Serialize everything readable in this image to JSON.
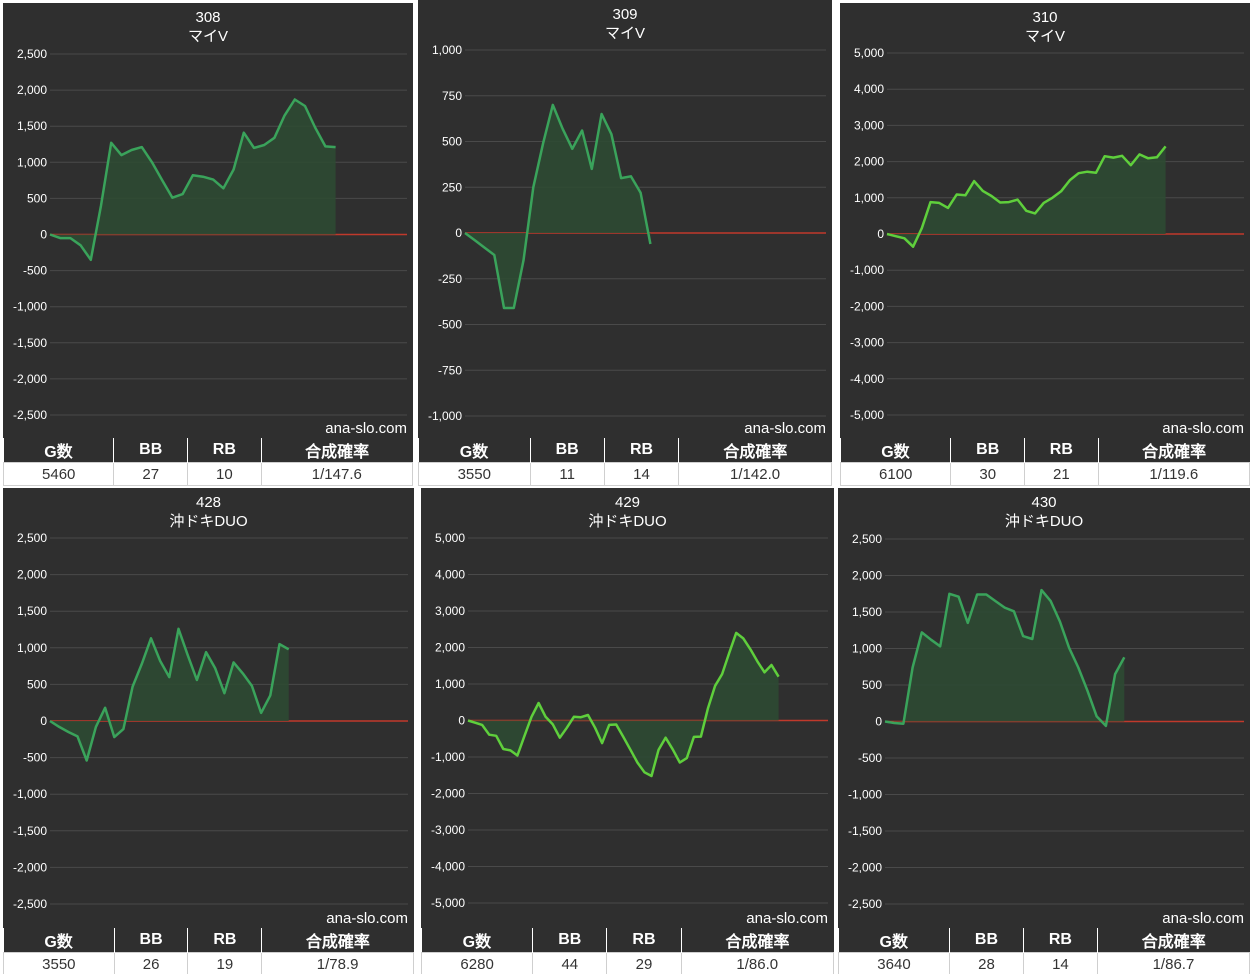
{
  "watermark": "ana-slo.com",
  "colors": {
    "background": "#2f2f2f",
    "grid": "#4a4a4a",
    "zero_line": "#c0392b",
    "line": "#3aa35b",
    "line_bright": "#5fcf3c",
    "fill": "#2d4a33",
    "text": "#ffffff"
  },
  "table_headers": [
    "G数",
    "BB",
    "RB",
    "合成確率"
  ],
  "machines": [
    {
      "number": "308",
      "name": "マイV",
      "stats": {
        "games": "5460",
        "bb": "27",
        "rb": "10",
        "probability": "1/147.6"
      },
      "chart_data": {
        "type": "area",
        "ylim": [
          -2500,
          2500
        ],
        "yticks": [
          "2,500",
          "2,000",
          "1,500",
          "1,000",
          "500",
          "0",
          "-500",
          "-1,000",
          "-1,500",
          "-2,000",
          "-2,500"
        ],
        "series": [
          {
            "values": [
              0,
              -50,
              -50,
              -150,
              -350,
              400,
              1270,
              1100,
              1170,
              1210,
              1000,
              750,
              510,
              560,
              820,
              800,
              760,
              640,
              900,
              1410,
              1200,
              1240,
              1340,
              1650,
              1870,
              1780,
              1480,
              1220,
              1210
            ]
          }
        ]
      }
    },
    {
      "number": "309",
      "name": "マイV",
      "stats": {
        "games": "3550",
        "bb": "11",
        "rb": "14",
        "probability": "1/142.0"
      },
      "chart_data": {
        "type": "area",
        "ylim": [
          -1000,
          1000
        ],
        "yticks": [
          "1,000",
          "750",
          "500",
          "250",
          "0",
          "-250",
          "-500",
          "-750",
          "-1,000"
        ],
        "series": [
          {
            "values": [
              0,
              -40,
              -80,
              -120,
              -410,
              -410,
              -150,
              250,
              490,
              700,
              570,
              460,
              560,
              350,
              650,
              540,
              300,
              310,
              220,
              -60
            ]
          }
        ]
      }
    },
    {
      "number": "310",
      "name": "マイV",
      "stats": {
        "games": "6100",
        "bb": "30",
        "rb": "21",
        "probability": "1/119.6"
      },
      "chart_data": {
        "type": "area",
        "ylim": [
          -5000,
          5000
        ],
        "yticks": [
          "5,000",
          "4,000",
          "3,000",
          "2,000",
          "1,000",
          "0",
          "-1,000",
          "-2,000",
          "-3,000",
          "-4,000",
          "-5,000"
        ],
        "series": [
          {
            "values": [
              0,
              -60,
              -120,
              -350,
              160,
              880,
              860,
              720,
              1090,
              1070,
              1460,
              1190,
              1050,
              870,
              880,
              950,
              640,
              570,
              860,
              1000,
              1180,
              1490,
              1680,
              1720,
              1690,
              2150,
              2110,
              2160,
              1900,
              2200,
              2090,
              2120,
              2420
            ]
          }
        ]
      }
    },
    {
      "number": "428",
      "name": "沖ドキDUO",
      "stats": {
        "games": "3550",
        "bb": "26",
        "rb": "19",
        "probability": "1/78.9"
      },
      "chart_data": {
        "type": "area",
        "ylim": [
          -2500,
          2500
        ],
        "yticks": [
          "2,500",
          "2,000",
          "1,500",
          "1,000",
          "500",
          "0",
          "-500",
          "-1,000",
          "-1,500",
          "-2,000",
          "-2,500"
        ],
        "series": [
          {
            "values": [
              0,
              -80,
              -150,
              -210,
              -540,
              -80,
              180,
              -220,
              -110,
              470,
              780,
              1130,
              820,
              600,
              1260,
              900,
              560,
              940,
              720,
              380,
              800,
              650,
              480,
              110,
              350,
              1050,
              980
            ]
          }
        ]
      }
    },
    {
      "number": "429",
      "name": "沖ドキDUO",
      "stats": {
        "games": "6280",
        "bb": "44",
        "rb": "29",
        "probability": "1/86.0"
      },
      "chart_data": {
        "type": "area",
        "ylim": [
          -5000,
          5000
        ],
        "yticks": [
          "5,000",
          "4,000",
          "3,000",
          "2,000",
          "1,000",
          "0",
          "-1,000",
          "-2,000",
          "-3,000",
          "-4,000",
          "-5,000"
        ],
        "series": [
          {
            "values": [
              0,
              -60,
              -120,
              -390,
              -420,
              -780,
              -820,
              -960,
              -420,
              100,
              480,
              100,
              -100,
              -470,
              -200,
              100,
              90,
              150,
              -200,
              -620,
              -120,
              -110,
              -450,
              -800,
              -1150,
              -1420,
              -1520,
              -800,
              -470,
              -790,
              -1150,
              -1030,
              -450,
              -440,
              340,
              950,
              1270,
              1850,
              2400,
              2250,
              1950,
              1620,
              1320,
              1520,
              1200
            ]
          }
        ]
      }
    },
    {
      "number": "430",
      "name": "沖ドキDUO",
      "stats": {
        "games": "3640",
        "bb": "28",
        "rb": "14",
        "probability": "1/86.7"
      },
      "chart_data": {
        "type": "area",
        "ylim": [
          -2500,
          2500
        ],
        "yticks": [
          "2,500",
          "2,000",
          "1,500",
          "1,000",
          "500",
          "0",
          "-500",
          "-1,000",
          "-1,500",
          "-2,000",
          "-2,500"
        ],
        "series": [
          {
            "values": [
              0,
              -20,
              -30,
              740,
              1220,
              1120,
              1030,
              1750,
              1710,
              1350,
              1740,
              1740,
              1650,
              1560,
              1510,
              1170,
              1130,
              1800,
              1650,
              1370,
              1010,
              740,
              420,
              70,
              -60,
              650,
              880
            ]
          }
        ]
      }
    }
  ]
}
